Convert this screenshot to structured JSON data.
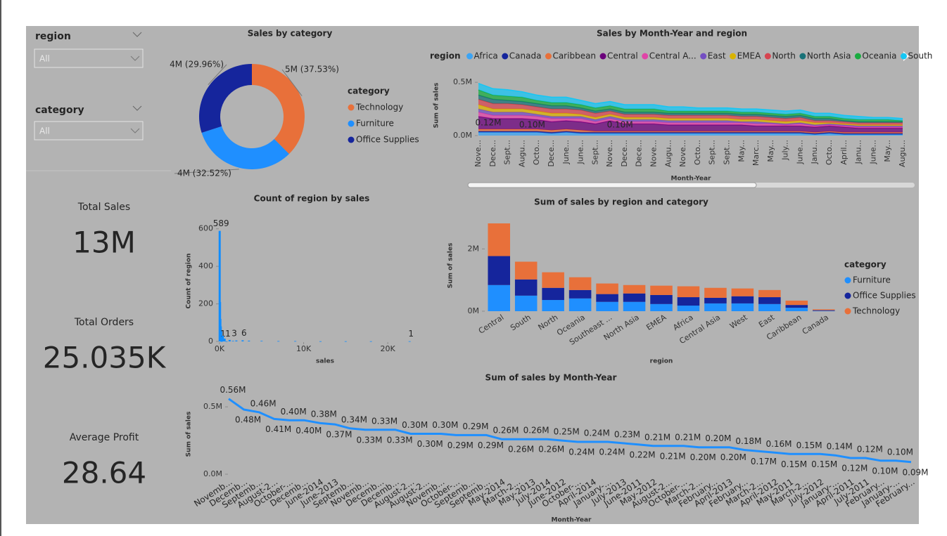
{
  "slicers": [
    {
      "title": "region",
      "value": "All"
    },
    {
      "title": "category",
      "value": "All"
    }
  ],
  "cards": [
    {
      "value": "13M",
      "label": "Total Sales"
    },
    {
      "value": "25.035K",
      "label": "Total Orders"
    },
    {
      "value": "28.64",
      "label": "Average Profit"
    }
  ],
  "chart_data": [
    {
      "type": "pie",
      "title": "Sales by category",
      "donut": true,
      "legend_title": "category",
      "categories": [
        "Technology",
        "Furniture",
        "Office Supplies"
      ],
      "values": [
        37.53,
        32.52,
        29.96
      ],
      "value_labels": [
        "5M (37.53%)",
        "4M (32.52%)",
        "4M (29.96%)"
      ],
      "colors": [
        "#e8703a",
        "#1f8fff",
        "#15259c"
      ]
    },
    {
      "type": "area",
      "stacked": true,
      "title": "Sales by Month-Year and region",
      "legend_title": "region",
      "x_label": "Month-Year",
      "y_label": "Sum of sales",
      "categories": [
        "Nove...",
        "Dece...",
        "Sept...",
        "Augu...",
        "Octo...",
        "Dece...",
        "June...",
        "June...",
        "Sept...",
        "Nove...",
        "Dece...",
        "Dece...",
        "Nove...",
        "Augu...",
        "Nove...",
        "Octo...",
        "Sept...",
        "Sept...",
        "May...",
        "Marc...",
        "May...",
        "July...",
        "June...",
        "Janu...",
        "Octo...",
        "April...",
        "Janu...",
        "June...",
        "May...",
        "Augu..."
      ],
      "ylim": [
        0,
        0.6
      ],
      "yticks": [
        {
          "value": 0,
          "label": "0.0M"
        },
        {
          "value": 0.5,
          "label": "0.5M"
        }
      ],
      "series": [
        {
          "name": "Africa",
          "color": "#3ba4f5",
          "values": [
            0.03,
            0.03,
            0.03,
            0.03,
            0.03,
            0.02,
            0.03,
            0.02,
            0.02,
            0.02,
            0.02,
            0.02,
            0.02,
            0.02,
            0.02,
            0.02,
            0.02,
            0.02,
            0.02,
            0.02,
            0.02,
            0.02,
            0.02,
            0.01,
            0.02,
            0.01,
            0.01,
            0.01,
            0.01,
            0.01
          ]
        },
        {
          "name": "Canada",
          "color": "#15259c",
          "values": [
            0.01,
            0.01,
            0.01,
            0.01,
            0.01,
            0.01,
            0.01,
            0.01,
            0.01,
            0.01,
            0.01,
            0.01,
            0.01,
            0.01,
            0.01,
            0.01,
            0.01,
            0.01,
            0.01,
            0.01,
            0.01,
            0.01,
            0.01,
            0.01,
            0.01,
            0.01,
            0.01,
            0.01,
            0.01,
            0.01
          ]
        },
        {
          "name": "Caribbean",
          "color": "#e8703a",
          "values": [
            0.02,
            0.02,
            0.02,
            0.02,
            0.02,
            0.02,
            0.02,
            0.02,
            0.01,
            0.01,
            0.01,
            0.01,
            0.01,
            0.01,
            0.01,
            0.01,
            0.01,
            0.01,
            0.01,
            0.01,
            0.01,
            0.01,
            0.01,
            0.01,
            0.01,
            0.01,
            0.01,
            0.01,
            0.01,
            0.01
          ]
        },
        {
          "name": "Central",
          "color": "#6b007b",
          "values": [
            0.12,
            0.1,
            0.1,
            0.1,
            0.09,
            0.08,
            0.08,
            0.08,
            0.07,
            0.1,
            0.07,
            0.07,
            0.07,
            0.06,
            0.06,
            0.06,
            0.06,
            0.06,
            0.06,
            0.05,
            0.05,
            0.05,
            0.05,
            0.05,
            0.05,
            0.05,
            0.04,
            0.04,
            0.04,
            0.04
          ],
          "value_labels": [
            "0.12M",
            null,
            null,
            "0.10M",
            null,
            null,
            null,
            null,
            null,
            "0.10M",
            null,
            null,
            null,
            null,
            null,
            null,
            null,
            null,
            null,
            null,
            null,
            null,
            null,
            null,
            null,
            null,
            null,
            null,
            null,
            null
          ]
        },
        {
          "name": "Central A...",
          "color": "#e044a7",
          "values": [
            0.04,
            0.03,
            0.03,
            0.03,
            0.03,
            0.03,
            0.02,
            0.03,
            0.02,
            0.02,
            0.02,
            0.02,
            0.02,
            0.02,
            0.02,
            0.02,
            0.02,
            0.02,
            0.02,
            0.02,
            0.02,
            0.01,
            0.02,
            0.01,
            0.01,
            0.01,
            0.01,
            0.01,
            0.01,
            0.01
          ]
        },
        {
          "name": "East",
          "color": "#744ec2",
          "values": [
            0.03,
            0.03,
            0.03,
            0.03,
            0.02,
            0.02,
            0.02,
            0.02,
            0.02,
            0.02,
            0.02,
            0.02,
            0.02,
            0.02,
            0.02,
            0.02,
            0.02,
            0.02,
            0.01,
            0.02,
            0.01,
            0.01,
            0.01,
            0.01,
            0.01,
            0.01,
            0.01,
            0.01,
            0.01,
            0.01
          ]
        },
        {
          "name": "EMEA",
          "color": "#d9b300",
          "values": [
            0.04,
            0.03,
            0.03,
            0.03,
            0.03,
            0.03,
            0.03,
            0.02,
            0.02,
            0.02,
            0.02,
            0.02,
            0.02,
            0.02,
            0.02,
            0.02,
            0.02,
            0.02,
            0.02,
            0.02,
            0.02,
            0.02,
            0.02,
            0.02,
            0.01,
            0.01,
            0.01,
            0.01,
            0.01,
            0.01
          ]
        },
        {
          "name": "North",
          "color": "#d64550",
          "values": [
            0.05,
            0.05,
            0.05,
            0.04,
            0.04,
            0.04,
            0.04,
            0.04,
            0.04,
            0.03,
            0.03,
            0.03,
            0.03,
            0.03,
            0.03,
            0.03,
            0.03,
            0.03,
            0.03,
            0.03,
            0.03,
            0.03,
            0.03,
            0.02,
            0.02,
            0.02,
            0.02,
            0.02,
            0.02,
            0.02
          ]
        },
        {
          "name": "North Asia",
          "color": "#197278",
          "values": [
            0.04,
            0.04,
            0.03,
            0.03,
            0.03,
            0.03,
            0.03,
            0.02,
            0.02,
            0.02,
            0.02,
            0.02,
            0.02,
            0.02,
            0.02,
            0.02,
            0.02,
            0.02,
            0.02,
            0.02,
            0.02,
            0.02,
            0.02,
            0.02,
            0.02,
            0.01,
            0.01,
            0.01,
            0.01,
            0.01
          ]
        },
        {
          "name": "Oceania",
          "color": "#1aab40",
          "values": [
            0.05,
            0.04,
            0.04,
            0.04,
            0.03,
            0.03,
            0.03,
            0.03,
            0.03,
            0.03,
            0.03,
            0.03,
            0.03,
            0.02,
            0.02,
            0.02,
            0.02,
            0.02,
            0.02,
            0.02,
            0.02,
            0.02,
            0.02,
            0.02,
            0.02,
            0.02,
            0.02,
            0.02,
            0.02,
            0.01
          ]
        },
        {
          "name": "South",
          "color": "#15c6f4",
          "values": [
            0.06,
            0.06,
            0.06,
            0.05,
            0.05,
            0.05,
            0.05,
            0.04,
            0.04,
            0.04,
            0.04,
            0.04,
            0.04,
            0.04,
            0.04,
            0.03,
            0.03,
            0.03,
            0.03,
            0.03,
            0.03,
            0.03,
            0.03,
            0.03,
            0.03,
            0.03,
            0.03,
            0.02,
            0.02,
            0.02
          ]
        }
      ]
    },
    {
      "type": "bar",
      "title": "Count of region by sales",
      "x_label": "sales",
      "y_label": "Count of region",
      "color": "#118dff",
      "x": [
        20,
        60,
        100,
        150,
        200,
        250,
        400,
        600,
        830,
        1200,
        1600,
        2000,
        2750,
        3500,
        5000,
        7000,
        9000,
        12000,
        15000,
        18000,
        22600
      ],
      "values": [
        589,
        210,
        120,
        80,
        55,
        1,
        30,
        15,
        1,
        8,
        3,
        5,
        6,
        4,
        3,
        2,
        2,
        1,
        1,
        1,
        1
      ],
      "value_labels": [
        "589",
        null,
        null,
        null,
        null,
        "1",
        null,
        null,
        "1",
        null,
        "3",
        null,
        "6",
        null,
        null,
        null,
        null,
        null,
        null,
        null,
        "1"
      ],
      "xlim": [
        0,
        23000
      ],
      "xticks": [
        {
          "value": 0,
          "label": "0K"
        },
        {
          "value": 10000,
          "label": "10K"
        },
        {
          "value": 20000,
          "label": "20K"
        }
      ],
      "ylim": [
        0,
        640
      ],
      "yticks": [
        0,
        200,
        400,
        600
      ]
    },
    {
      "type": "bar",
      "stacked": true,
      "title": "Sum of sales by region and category",
      "x_label": "region",
      "y_label": "Sum of sales",
      "legend_title": "category",
      "categories": [
        "Central",
        "South",
        "North",
        "Oceania",
        "Southeast ...",
        "North Asia",
        "EMEA",
        "Africa",
        "Central Asia",
        "West",
        "East",
        "Caribbean",
        "Canada"
      ],
      "ylim": [
        0,
        3
      ],
      "yticks": [
        {
          "value": 0,
          "label": "0M"
        },
        {
          "value": 2,
          "label": "2M"
        }
      ],
      "series": [
        {
          "name": "Furniture",
          "color": "#1f8fff",
          "values": [
            0.84,
            0.5,
            0.36,
            0.41,
            0.3,
            0.3,
            0.23,
            0.18,
            0.25,
            0.25,
            0.23,
            0.11,
            0.01
          ]
        },
        {
          "name": "Office Supplies",
          "color": "#15259c",
          "values": [
            0.93,
            0.52,
            0.39,
            0.27,
            0.25,
            0.27,
            0.29,
            0.27,
            0.18,
            0.23,
            0.22,
            0.09,
            0.02
          ]
        },
        {
          "name": "Technology",
          "color": "#e8703a",
          "values": [
            1.05,
            0.57,
            0.5,
            0.41,
            0.34,
            0.27,
            0.3,
            0.35,
            0.32,
            0.25,
            0.23,
            0.14,
            0.03
          ]
        }
      ]
    },
    {
      "type": "line",
      "title": "Sum of sales by Month-Year",
      "x_label": "Month-Year",
      "y_label": "Sum of sales",
      "color": "#1f8fff",
      "categories": [
        "Novemb...",
        "Decemb...",
        "Septemb...",
        "August-2...",
        "October-...",
        "Decemb...",
        "June-2014",
        "June-2013",
        "Septemb...",
        "Novemb...",
        "Decemb...",
        "Decemb...",
        "August-2...",
        "August-2...",
        "Novemb...",
        "October-...",
        "Septemb...",
        "Septemb...",
        "May-2014",
        "March-2...",
        "May-2013",
        "July-2014",
        "June-2012",
        "October-...",
        "April-2014",
        "January-...",
        "July-2013",
        "June-2011",
        "May-2012",
        "August-2...",
        "October-...",
        "March-2...",
        "February...",
        "April-2013",
        "February...",
        "March-2...",
        "April-2012",
        "May-2011",
        "March-2...",
        "July-2012",
        "January-...",
        "April-2011",
        "July-2011",
        "February...",
        "January-...",
        "February..."
      ],
      "values": [
        0.56,
        0.48,
        0.46,
        0.41,
        0.4,
        0.4,
        0.38,
        0.37,
        0.34,
        0.33,
        0.33,
        0.33,
        0.3,
        0.3,
        0.3,
        0.29,
        0.29,
        0.29,
        0.26,
        0.26,
        0.26,
        0.26,
        0.25,
        0.24,
        0.24,
        0.24,
        0.23,
        0.22,
        0.21,
        0.21,
        0.21,
        0.2,
        0.2,
        0.2,
        0.18,
        0.17,
        0.16,
        0.15,
        0.15,
        0.15,
        0.14,
        0.12,
        0.12,
        0.1,
        0.1,
        0.09
      ],
      "value_labels": [
        "0.56M",
        "0.48M",
        "0.46M",
        "0.41M",
        "0.40M",
        "0.40M",
        "0.38M",
        "0.37M",
        "0.34M",
        "0.33M",
        "0.33M",
        "0.33M",
        "0.30M",
        "0.30M",
        "0.30M",
        "0.29M",
        "0.29M",
        "0.29M",
        "0.26M",
        "0.26M",
        "0.26M",
        "0.26M",
        "0.25M",
        "0.24M",
        "0.24M",
        "0.24M",
        "0.23M",
        "0.22M",
        "0.21M",
        "0.21M",
        "0.21M",
        "0.20M",
        "0.20M",
        "0.20M",
        "0.18M",
        "0.17M",
        "0.16M",
        "0.15M",
        "0.15M",
        "0.15M",
        "0.14M",
        "0.12M",
        "0.12M",
        "0.10M",
        "0.10M",
        "0.09M"
      ],
      "ylim": [
        0,
        0.6
      ],
      "yticks": [
        {
          "value": 0,
          "label": "0.0M"
        },
        {
          "value": 0.5,
          "label": "0.5M"
        }
      ]
    }
  ]
}
